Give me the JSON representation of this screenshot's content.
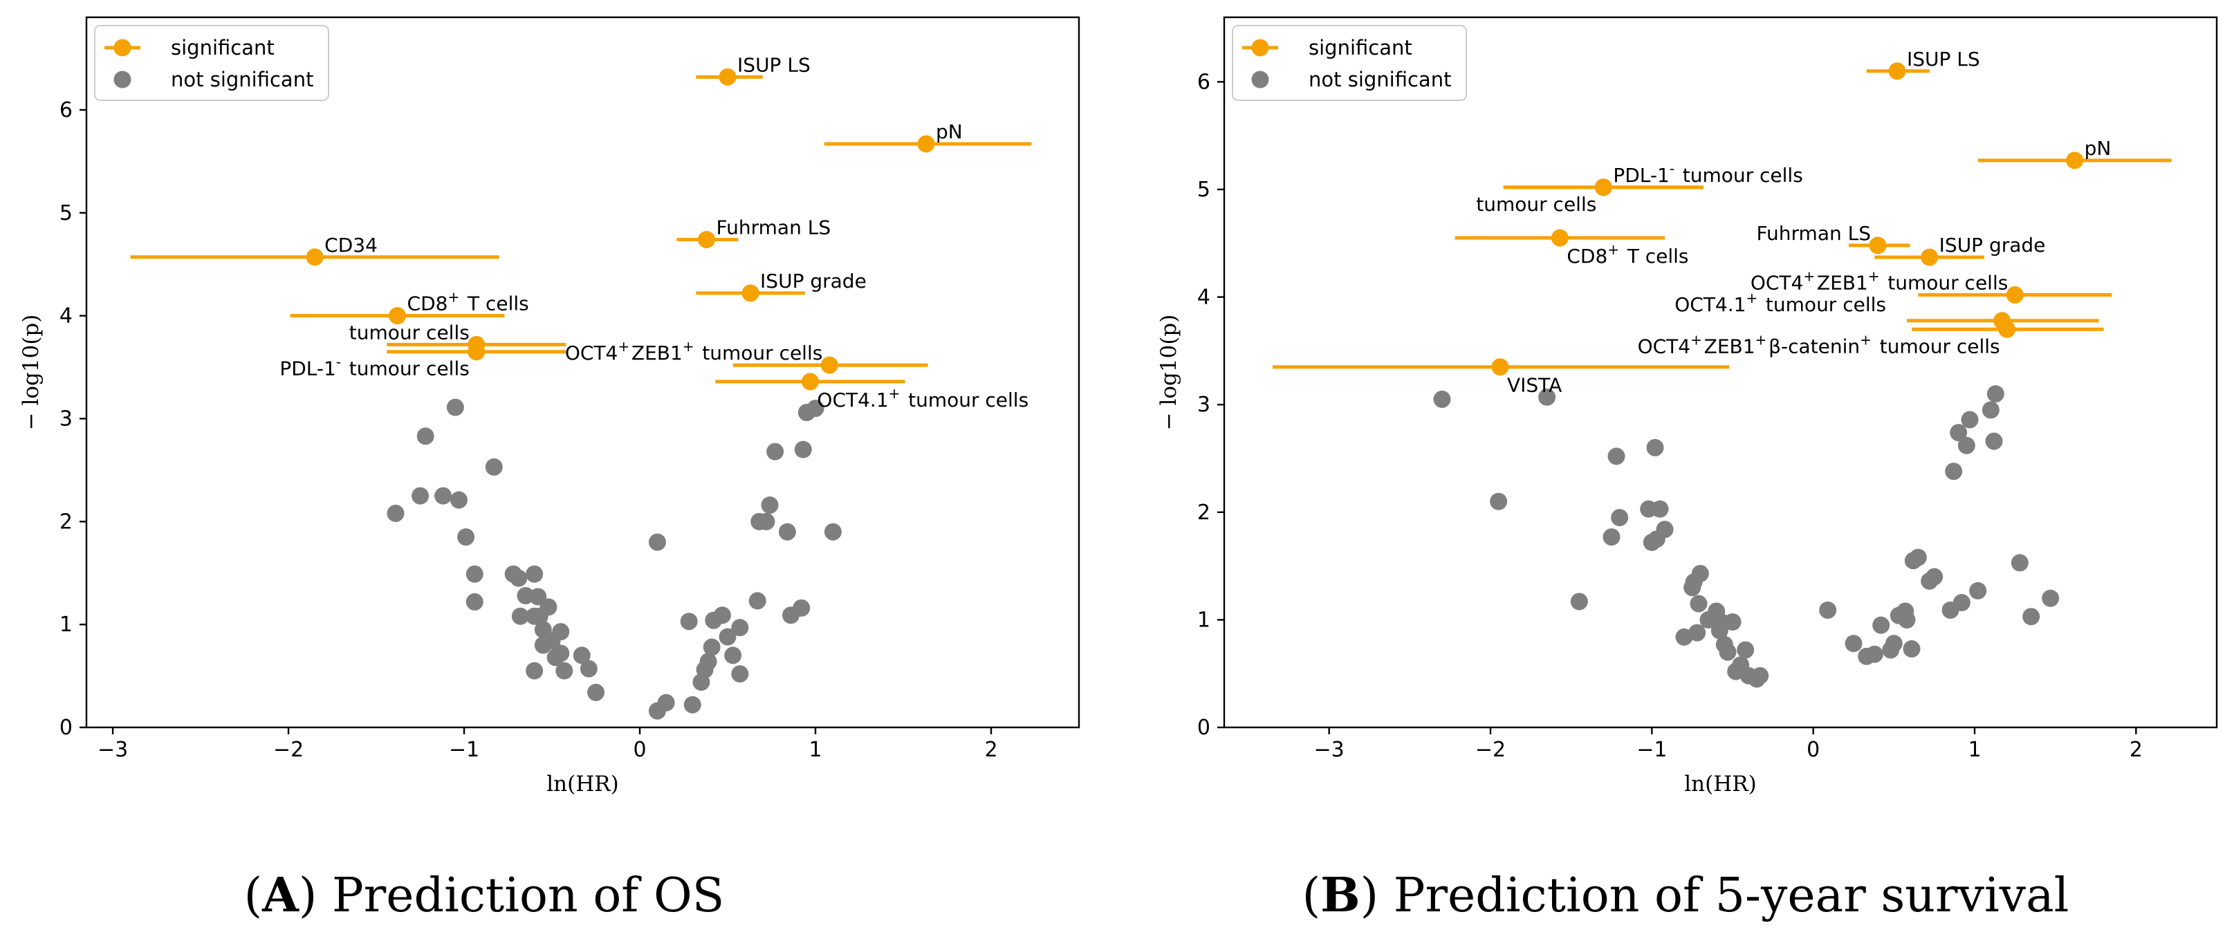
{
  "colors": {
    "significant": "#f5a200",
    "not_significant": "#7f7f7f"
  },
  "chart_data": [
    {
      "type": "scatter",
      "caption": {
        "letter": "A",
        "text": "Prediction of OS"
      },
      "xlabel": "ln(HR)",
      "ylabel": "− log10(p)",
      "xlim": [
        -3.15,
        2.5
      ],
      "ylim": [
        0,
        6.9
      ],
      "xticks": [
        -3,
        -2,
        -1,
        0,
        1,
        2
      ],
      "yticks": [
        0,
        1,
        2,
        3,
        4,
        5,
        6
      ],
      "legend": {
        "position": "top-left",
        "entries": [
          "significant",
          "not significant"
        ]
      },
      "significant": [
        {
          "x": 0.5,
          "y": 6.32,
          "ci": [
            0.32,
            0.7
          ],
          "label": "ISUP LS",
          "label_pos": "right-above"
        },
        {
          "x": 1.63,
          "y": 5.67,
          "ci": [
            1.05,
            2.23
          ],
          "label": "pN",
          "label_pos": "right-above"
        },
        {
          "x": 0.38,
          "y": 4.74,
          "ci": [
            0.21,
            0.56
          ],
          "label": "Fuhrman LS",
          "label_pos": "right-above"
        },
        {
          "x": -1.85,
          "y": 4.57,
          "ci": [
            -2.9,
            -0.8
          ],
          "label": "CD34",
          "label_pos": "right-above"
        },
        {
          "x": 0.63,
          "y": 4.22,
          "ci": [
            0.32,
            0.94
          ],
          "label": "ISUP grade",
          "label_pos": "right-above"
        },
        {
          "x": -1.38,
          "y": 4.0,
          "ci": [
            -1.99,
            -0.77
          ],
          "label": "CD8⁺ T cells",
          "label_pos": "right-above"
        },
        {
          "x": -0.93,
          "y": 3.72,
          "ci": [
            -1.44,
            -0.42
          ],
          "label": "tumour cells",
          "label_pos": "left-above"
        },
        {
          "x": -0.93,
          "y": 3.65,
          "ci": [
            -1.44,
            -0.42
          ],
          "label": "PDL-1⁻ tumour cells",
          "label_pos": "left-below"
        },
        {
          "x": 1.08,
          "y": 3.52,
          "ci": [
            0.53,
            1.64
          ],
          "label": "OCT4⁺ZEB1⁺ tumour cells",
          "label_pos": "left-above"
        },
        {
          "x": 0.97,
          "y": 3.36,
          "ci": [
            0.43,
            1.51
          ],
          "label": "OCT4.1⁺ tumour cells",
          "label_pos": "right-below"
        }
      ],
      "not_significant": [
        [
          -1.39,
          2.08
        ],
        [
          -1.25,
          2.25
        ],
        [
          -1.12,
          2.25
        ],
        [
          -1.03,
          2.21
        ],
        [
          -1.22,
          2.83
        ],
        [
          -1.05,
          3.11
        ],
        [
          -0.83,
          2.53
        ],
        [
          -0.99,
          1.85
        ],
        [
          -0.94,
          1.49
        ],
        [
          -0.94,
          1.22
        ],
        [
          -0.72,
          1.49
        ],
        [
          -0.69,
          1.45
        ],
        [
          -0.65,
          1.28
        ],
        [
          -0.6,
          1.49
        ],
        [
          -0.68,
          1.08
        ],
        [
          -0.6,
          1.08
        ],
        [
          -0.58,
          1.27
        ],
        [
          -0.52,
          1.17
        ],
        [
          -0.55,
          0.95
        ],
        [
          -0.5,
          0.84
        ],
        [
          -0.45,
          0.93
        ],
        [
          -0.55,
          0.8
        ],
        [
          -0.48,
          0.68
        ],
        [
          -0.45,
          0.72
        ],
        [
          -0.43,
          0.55
        ],
        [
          -0.33,
          0.7
        ],
        [
          -0.29,
          0.57
        ],
        [
          -0.25,
          0.34
        ],
        [
          -0.6,
          0.55
        ],
        [
          -0.57,
          1.08
        ],
        [
          0.1,
          1.8
        ],
        [
          0.1,
          0.16
        ],
        [
          0.15,
          0.24
        ],
        [
          0.3,
          0.22
        ],
        [
          0.28,
          1.03
        ],
        [
          0.35,
          0.44
        ],
        [
          0.37,
          0.56
        ],
        [
          0.39,
          0.64
        ],
        [
          0.41,
          0.78
        ],
        [
          0.42,
          1.04
        ],
        [
          0.47,
          1.09
        ],
        [
          0.5,
          0.88
        ],
        [
          0.53,
          0.7
        ],
        [
          0.57,
          0.97
        ],
        [
          0.57,
          0.52
        ],
        [
          0.67,
          1.23
        ],
        [
          0.68,
          2.0
        ],
        [
          0.72,
          2.0
        ],
        [
          0.74,
          2.16
        ],
        [
          0.77,
          2.68
        ],
        [
          0.84,
          1.9
        ],
        [
          0.86,
          1.09
        ],
        [
          0.92,
          1.16
        ],
        [
          0.93,
          2.7
        ],
        [
          0.95,
          3.06
        ],
        [
          1.0,
          3.1
        ],
        [
          1.1,
          1.9
        ]
      ]
    },
    {
      "type": "scatter",
      "caption": {
        "letter": "B",
        "text": "Prediction of 5-year survival"
      },
      "xlabel": "ln(HR)",
      "ylabel": "− log10(p)",
      "xlim": [
        -3.65,
        2.5
      ],
      "ylim": [
        0,
        6.6
      ],
      "xticks": [
        -3,
        -2,
        -1,
        0,
        1,
        2
      ],
      "yticks": [
        0,
        1,
        2,
        3,
        4,
        5,
        6
      ],
      "legend": {
        "position": "top-left",
        "entries": [
          "significant",
          "not significant"
        ]
      },
      "significant": [
        {
          "x": 0.52,
          "y": 6.1,
          "ci": [
            0.33,
            0.72
          ],
          "label": "ISUP LS",
          "label_pos": "right-above"
        },
        {
          "x": 1.62,
          "y": 5.27,
          "ci": [
            1.02,
            2.22
          ],
          "label": "pN",
          "label_pos": "right-above"
        },
        {
          "x": -1.3,
          "y": 5.02,
          "ci": [
            -1.92,
            -0.68
          ],
          "label": "PDL-1⁻ tumour cells",
          "label_pos": "right-above"
        },
        {
          "x": -1.3,
          "y": 5.02,
          "ci": [
            -1.92,
            -0.68
          ],
          "label": "tumour cells",
          "label_pos": "left-below"
        },
        {
          "x": -1.57,
          "y": 4.55,
          "ci": [
            -2.22,
            -0.92
          ],
          "label": "CD8⁺ T cells",
          "label_pos": "right-below"
        },
        {
          "x": 0.4,
          "y": 4.48,
          "ci": [
            0.22,
            0.6
          ],
          "label": "Fuhrman LS",
          "label_pos": "left-above"
        },
        {
          "x": 0.72,
          "y": 4.37,
          "ci": [
            0.38,
            1.06
          ],
          "label": "ISUP grade",
          "label_pos": "right-above"
        },
        {
          "x": 1.25,
          "y": 4.02,
          "ci": [
            0.65,
            1.85
          ],
          "label": "OCT4⁺ZEB1⁺ tumour cells",
          "label_pos": "left-above"
        },
        {
          "x": 1.17,
          "y": 3.78,
          "ci": [
            0.58,
            1.77
          ],
          "label": "OCT4.1⁺ tumour cells",
          "label_pos": "far-left-above"
        },
        {
          "x": 1.2,
          "y": 3.7,
          "ci": [
            0.61,
            1.8
          ],
          "label": "OCT4⁺ZEB1⁺β-catenin⁺ tumour cells",
          "label_pos": "left-below"
        },
        {
          "x": -1.94,
          "y": 3.35,
          "ci": [
            -3.35,
            -0.52
          ],
          "label": "VISTA",
          "label_pos": "right-below"
        }
      ],
      "not_significant": [
        [
          -2.3,
          3.05
        ],
        [
          -1.95,
          2.1
        ],
        [
          -1.65,
          3.07
        ],
        [
          -1.45,
          1.17
        ],
        [
          -1.22,
          2.52
        ],
        [
          -1.2,
          1.95
        ],
        [
          -1.25,
          1.77
        ],
        [
          -1.02,
          2.03
        ],
        [
          -1.0,
          1.72
        ],
        [
          -0.98,
          2.6
        ],
        [
          -0.95,
          2.03
        ],
        [
          -0.97,
          1.75
        ],
        [
          -0.92,
          1.84
        ],
        [
          -0.8,
          0.84
        ],
        [
          -0.75,
          1.3
        ],
        [
          -0.74,
          1.35
        ],
        [
          -0.7,
          1.43
        ],
        [
          -0.71,
          1.15
        ],
        [
          -0.72,
          0.88
        ],
        [
          -0.65,
          1.0
        ],
        [
          -0.6,
          1.08
        ],
        [
          -0.57,
          0.98
        ],
        [
          -0.55,
          0.77
        ],
        [
          -0.53,
          0.7
        ],
        [
          -0.5,
          0.98
        ],
        [
          -0.48,
          0.52
        ],
        [
          -0.45,
          0.58
        ],
        [
          -0.42,
          0.72
        ],
        [
          -0.4,
          0.48
        ],
        [
          -0.35,
          0.45
        ],
        [
          -0.33,
          0.48
        ],
        [
          -0.58,
          0.9
        ],
        [
          0.09,
          1.09
        ],
        [
          0.25,
          0.78
        ],
        [
          0.33,
          0.66
        ],
        [
          0.38,
          0.68
        ],
        [
          0.42,
          0.95
        ],
        [
          0.48,
          0.72
        ],
        [
          0.5,
          0.78
        ],
        [
          0.53,
          1.04
        ],
        [
          0.57,
          1.08
        ],
        [
          0.58,
          1.0
        ],
        [
          0.61,
          0.73
        ],
        [
          0.62,
          1.55
        ],
        [
          0.65,
          1.58
        ],
        [
          0.72,
          1.36
        ],
        [
          0.75,
          1.4
        ],
        [
          0.85,
          1.09
        ],
        [
          0.87,
          2.38
        ],
        [
          0.9,
          2.74
        ],
        [
          0.92,
          1.16
        ],
        [
          0.95,
          2.62
        ],
        [
          0.97,
          2.86
        ],
        [
          1.02,
          1.27
        ],
        [
          1.1,
          2.95
        ],
        [
          1.12,
          2.66
        ],
        [
          1.13,
          3.1
        ],
        [
          1.28,
          1.53
        ],
        [
          1.35,
          1.03
        ],
        [
          1.47,
          1.2
        ]
      ]
    }
  ]
}
